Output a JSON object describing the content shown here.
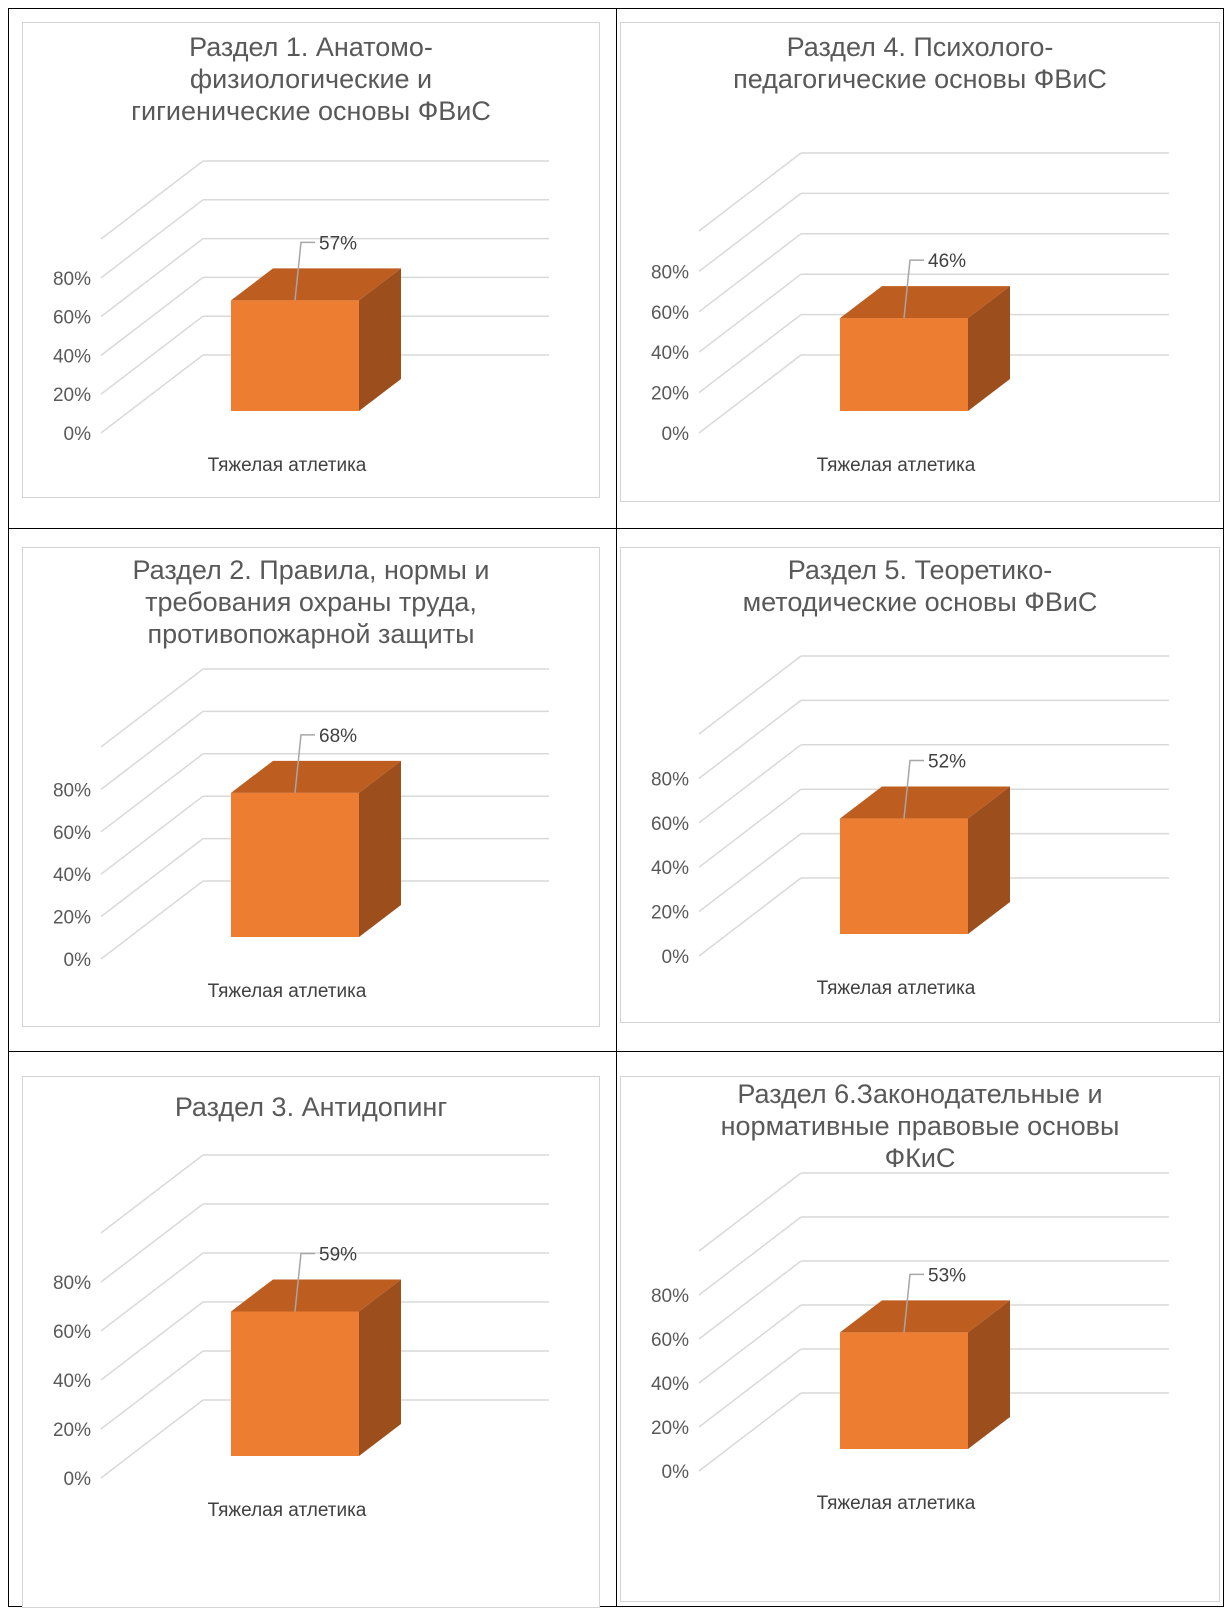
{
  "colors": {
    "bar_front": "#ed7d31",
    "bar_top": "#bd5e20",
    "bar_side": "#9c4f1c",
    "grid": "#d9d9d9",
    "leader": "#a6a6a6"
  },
  "chart_data": [
    {
      "type": "bar",
      "title": [
        "Раздел 1. Анатомо-",
        "физиологические и",
        "гигиенические основы ФВиС"
      ],
      "categories": [
        "Тяжелая атлетика"
      ],
      "values": [
        57
      ],
      "value_label": "57%",
      "yticks": [
        "0%",
        "20%",
        "40%",
        "60%",
        "80%"
      ],
      "ylim": [
        0,
        100
      ],
      "grid": true,
      "style": "3d-column"
    },
    {
      "type": "bar",
      "title": [
        "Раздел 4. Психолого-",
        "педагогические основы ФВиС"
      ],
      "categories": [
        "Тяжелая атлетика"
      ],
      "values": [
        46
      ],
      "value_label": "46%",
      "yticks": [
        "0%",
        "20%",
        "40%",
        "60%",
        "80%"
      ],
      "ylim": [
        0,
        100
      ],
      "grid": true,
      "style": "3d-column"
    },
    {
      "type": "bar",
      "title": [
        "Раздел 2. Правила, нормы и",
        "требования охраны труда,",
        "противопожарной защиты"
      ],
      "categories": [
        "Тяжелая атлетика"
      ],
      "values": [
        68
      ],
      "value_label": "68%",
      "yticks": [
        "0%",
        "20%",
        "40%",
        "60%",
        "80%"
      ],
      "ylim": [
        0,
        100
      ],
      "grid": true,
      "style": "3d-column"
    },
    {
      "type": "bar",
      "title": [
        "Раздел 5. Теоретико-",
        "методические основы ФВиС"
      ],
      "categories": [
        "Тяжелая атлетика"
      ],
      "values": [
        52
      ],
      "value_label": "52%",
      "yticks": [
        "0%",
        "20%",
        "40%",
        "60%",
        "80%"
      ],
      "ylim": [
        0,
        100
      ],
      "grid": true,
      "style": "3d-column"
    },
    {
      "type": "bar",
      "title": [
        "Раздел 3. Антидопинг"
      ],
      "categories": [
        "Тяжелая атлетика"
      ],
      "values": [
        59
      ],
      "value_label": "59%",
      "yticks": [
        "0%",
        "20%",
        "40%",
        "60%",
        "80%"
      ],
      "ylim": [
        0,
        100
      ],
      "grid": true,
      "style": "3d-column"
    },
    {
      "type": "bar",
      "title": [
        "Раздел 6.Законодательные и",
        "нормативные правовые основы",
        "ФКиС"
      ],
      "categories": [
        "Тяжелая атлетика"
      ],
      "values": [
        53
      ],
      "value_label": "53%",
      "yticks": [
        "0%",
        "20%",
        "40%",
        "60%",
        "80%"
      ],
      "ylim": [
        0,
        100
      ],
      "grid": true,
      "style": "3d-column"
    }
  ]
}
